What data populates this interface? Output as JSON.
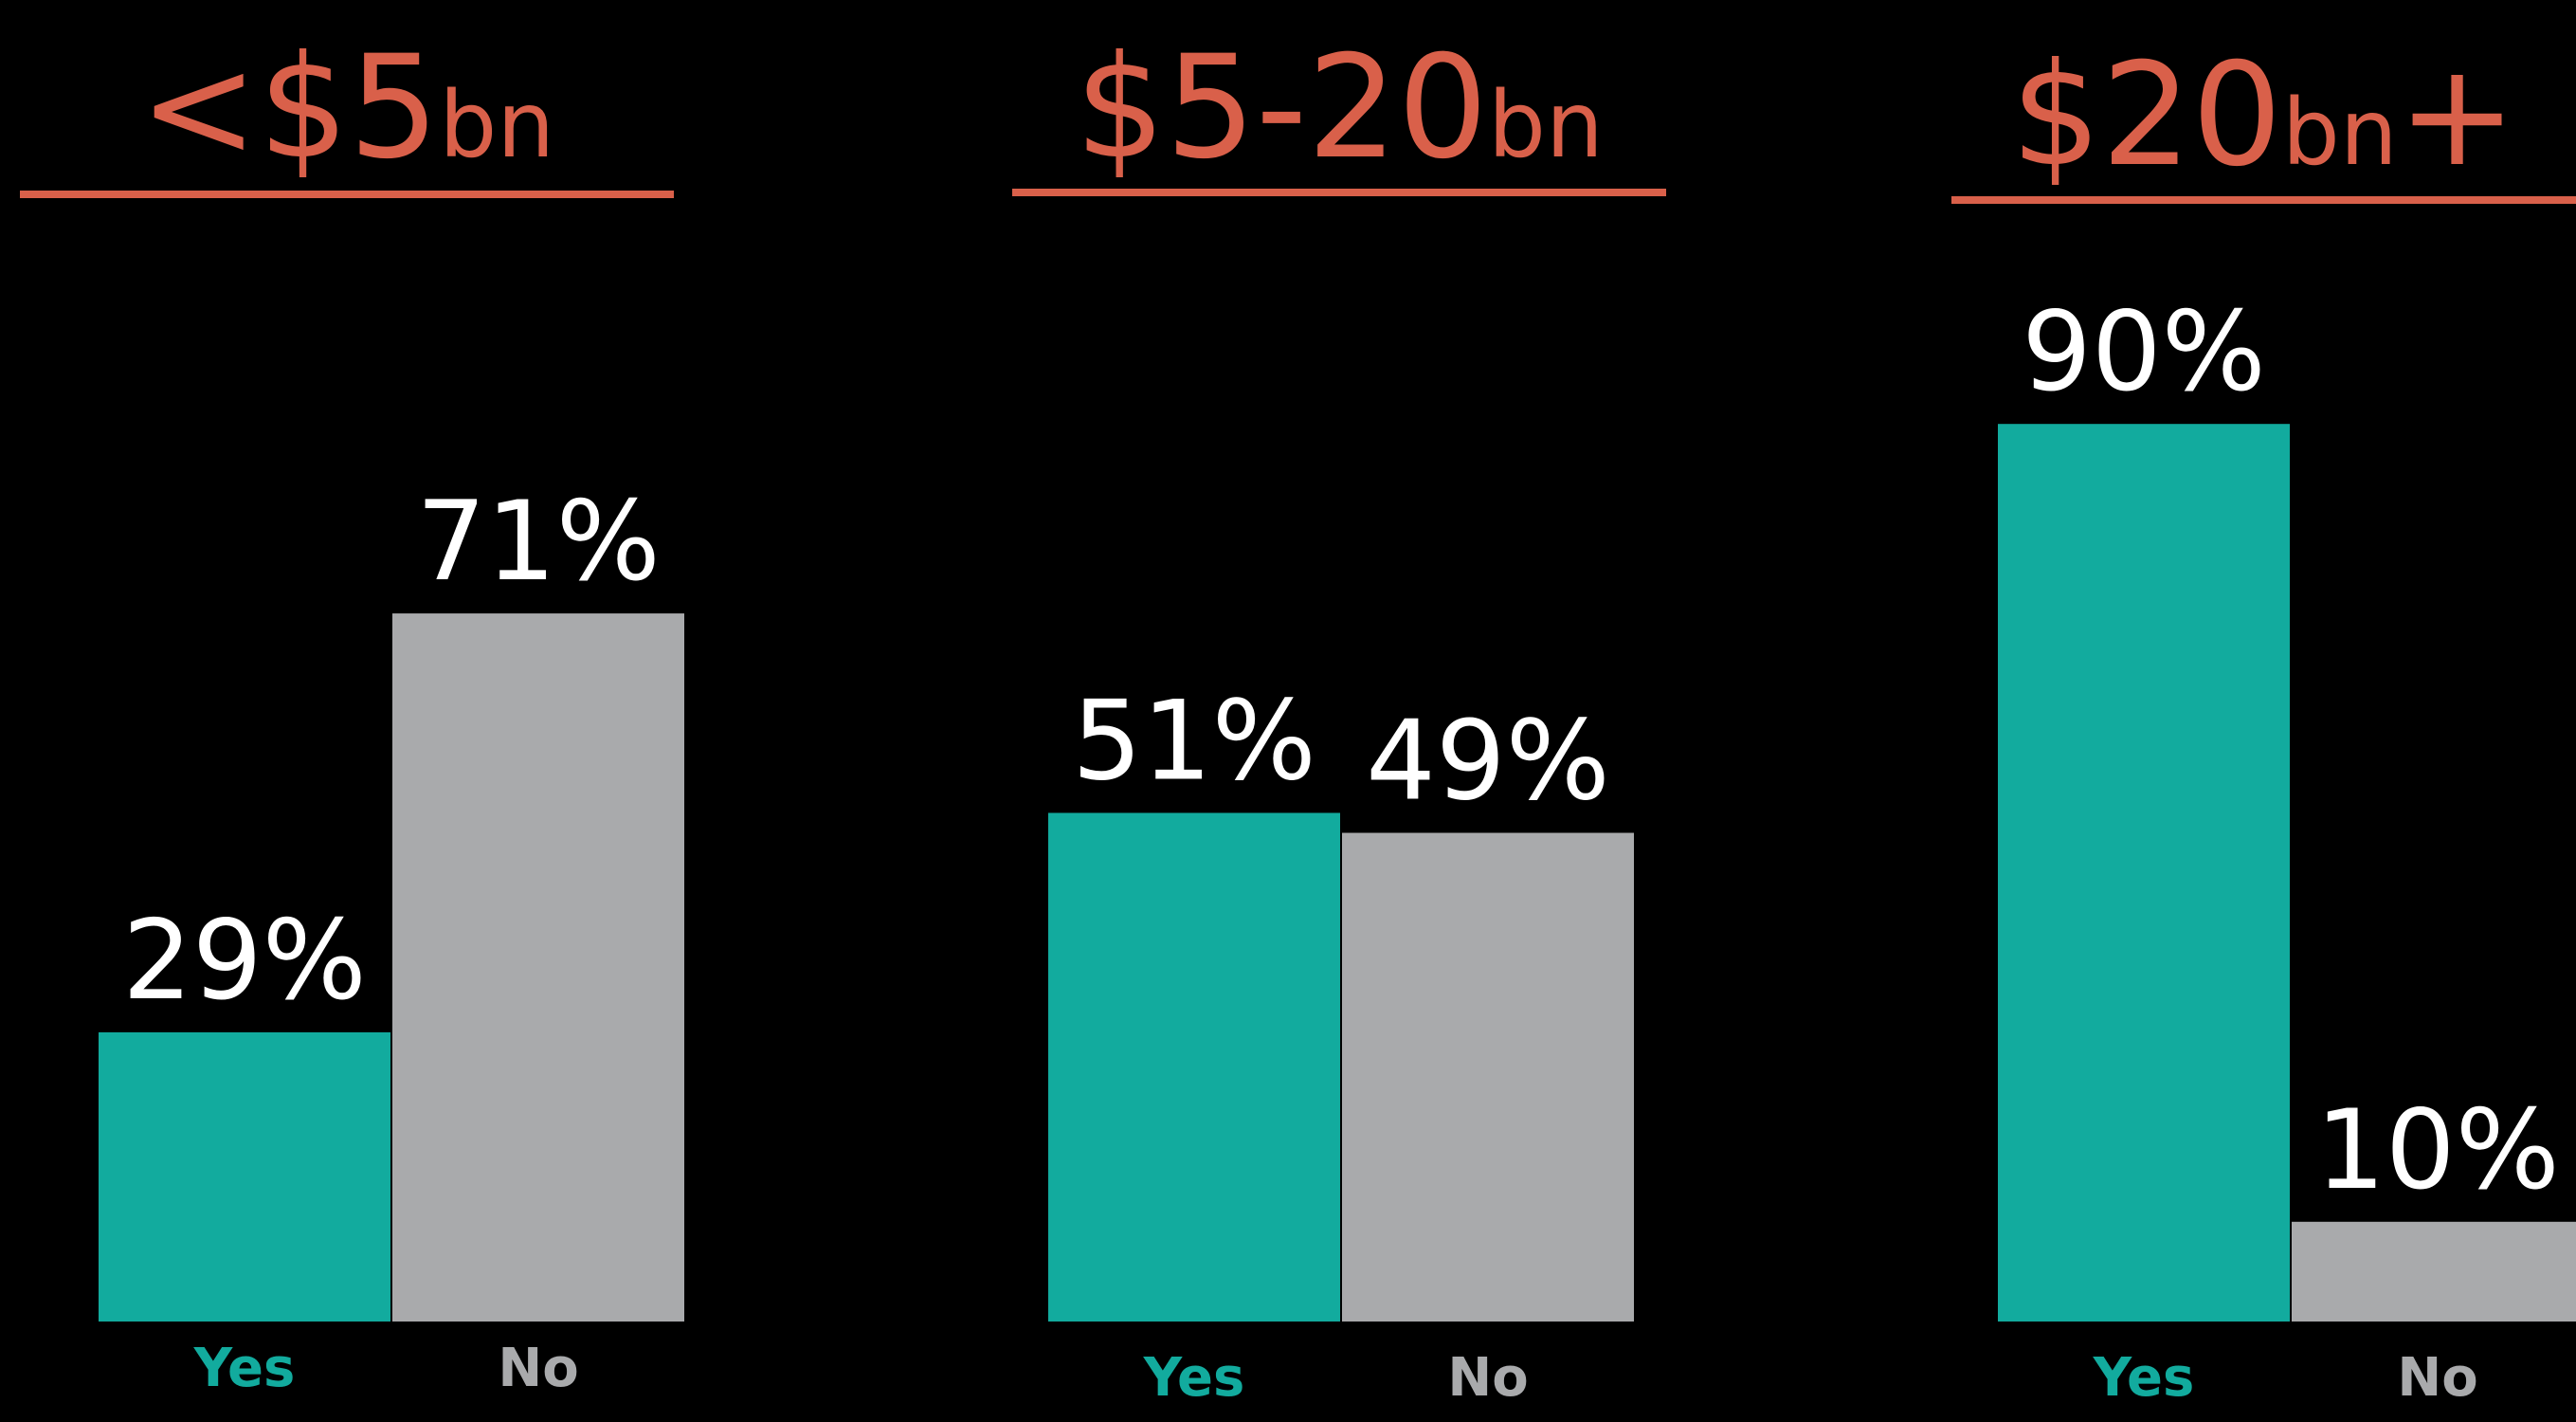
{
  "chart_data": [
    {
      "type": "bar",
      "title": [
        "<$5",
        "bn"
      ],
      "categories": [
        "Yes",
        "No"
      ],
      "values": [
        29,
        71
      ],
      "value_labels": [
        "29%",
        "71%"
      ],
      "colors": [
        "#12ab9e",
        "#a9aaac"
      ]
    },
    {
      "type": "bar",
      "title": [
        "$5-20",
        "bn"
      ],
      "categories": [
        "Yes",
        "No"
      ],
      "values": [
        51,
        49
      ],
      "value_labels": [
        "51%",
        "49%"
      ],
      "colors": [
        "#12ab9e",
        "#a9aaac"
      ]
    },
    {
      "type": "bar",
      "title": [
        "$20",
        "bn",
        "+"
      ],
      "categories": [
        "Yes",
        "No"
      ],
      "values": [
        90,
        10
      ],
      "value_labels": [
        "90%",
        "10%"
      ],
      "colors": [
        "#12ab9e",
        "#a9aaac"
      ]
    }
  ]
}
